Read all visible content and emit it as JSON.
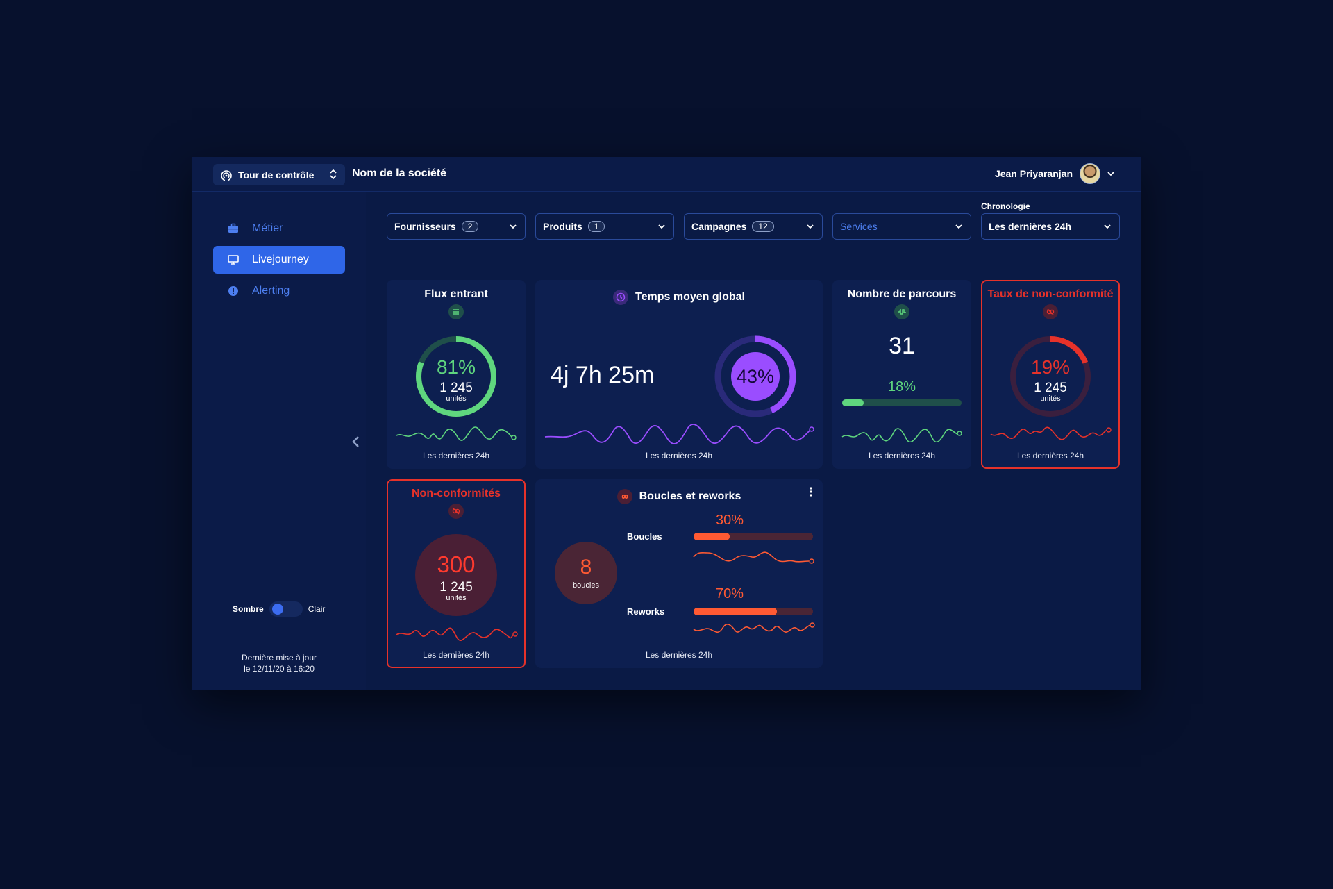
{
  "topbar": {
    "app_switcher_label": "Tour de contrôle",
    "company_name": "Nom de la société",
    "user_name": "Jean Priyaranjan"
  },
  "sidebar": {
    "items": [
      {
        "label": "Métier",
        "icon": "briefcase-icon",
        "active": false
      },
      {
        "label": "Livejourney",
        "icon": "monitor-icon",
        "active": true
      },
      {
        "label": "Alerting",
        "icon": "alert-circle-icon",
        "active": false
      }
    ],
    "theme": {
      "dark_label": "Sombre",
      "light_label": "Clair"
    },
    "last_update_line1": "Dernière mise à jour",
    "last_update_line2": "le 12/11/20 à 16:20"
  },
  "filters": [
    {
      "label": "Fournisseurs",
      "count": "2"
    },
    {
      "label": "Produits",
      "count": "1"
    },
    {
      "label": "Campagnes",
      "count": "12"
    },
    {
      "label": "Services",
      "count": ""
    },
    {
      "label": "Les dernières 24h",
      "count": ""
    }
  ],
  "chronologie_label": "Chronologie",
  "colors": {
    "green": "#5fd67e",
    "purple": "#9a4dff",
    "red": "#e6322a",
    "orange": "#ff5a33",
    "accent_blue": "#2f66e8"
  },
  "cards": {
    "flux": {
      "title": "Flux entrant",
      "percent": "81%",
      "percent_value": 81,
      "count": "1 245",
      "unit": "unités",
      "footer": "Les dernières 24h"
    },
    "temps": {
      "title": "Temps moyen global",
      "value": "4j 7h 25m",
      "percent": "43%",
      "percent_value": 43,
      "footer": "Les dernières 24h"
    },
    "parcours": {
      "title": "Nombre de parcours",
      "value": "31",
      "percent": "18%",
      "percent_value": 18,
      "footer": "Les dernières 24h"
    },
    "taux": {
      "title": "Taux de non-conformité",
      "percent": "19%",
      "percent_value": 19,
      "count": "1 245",
      "unit": "unités",
      "footer": "Les dernières 24h"
    },
    "nonconf": {
      "title": "Non-conformités",
      "value": "300",
      "count": "1 245",
      "unit": "unités",
      "footer": "Les dernières 24h"
    },
    "boucles": {
      "title": "Boucles et reworks",
      "value": "8",
      "value_unit": "boucles",
      "rows": [
        {
          "label": "Boucles",
          "percent": "30%",
          "percent_value": 30
        },
        {
          "label": "Reworks",
          "percent": "70%",
          "percent_value": 70
        }
      ],
      "footer": "Les dernières 24h"
    }
  }
}
